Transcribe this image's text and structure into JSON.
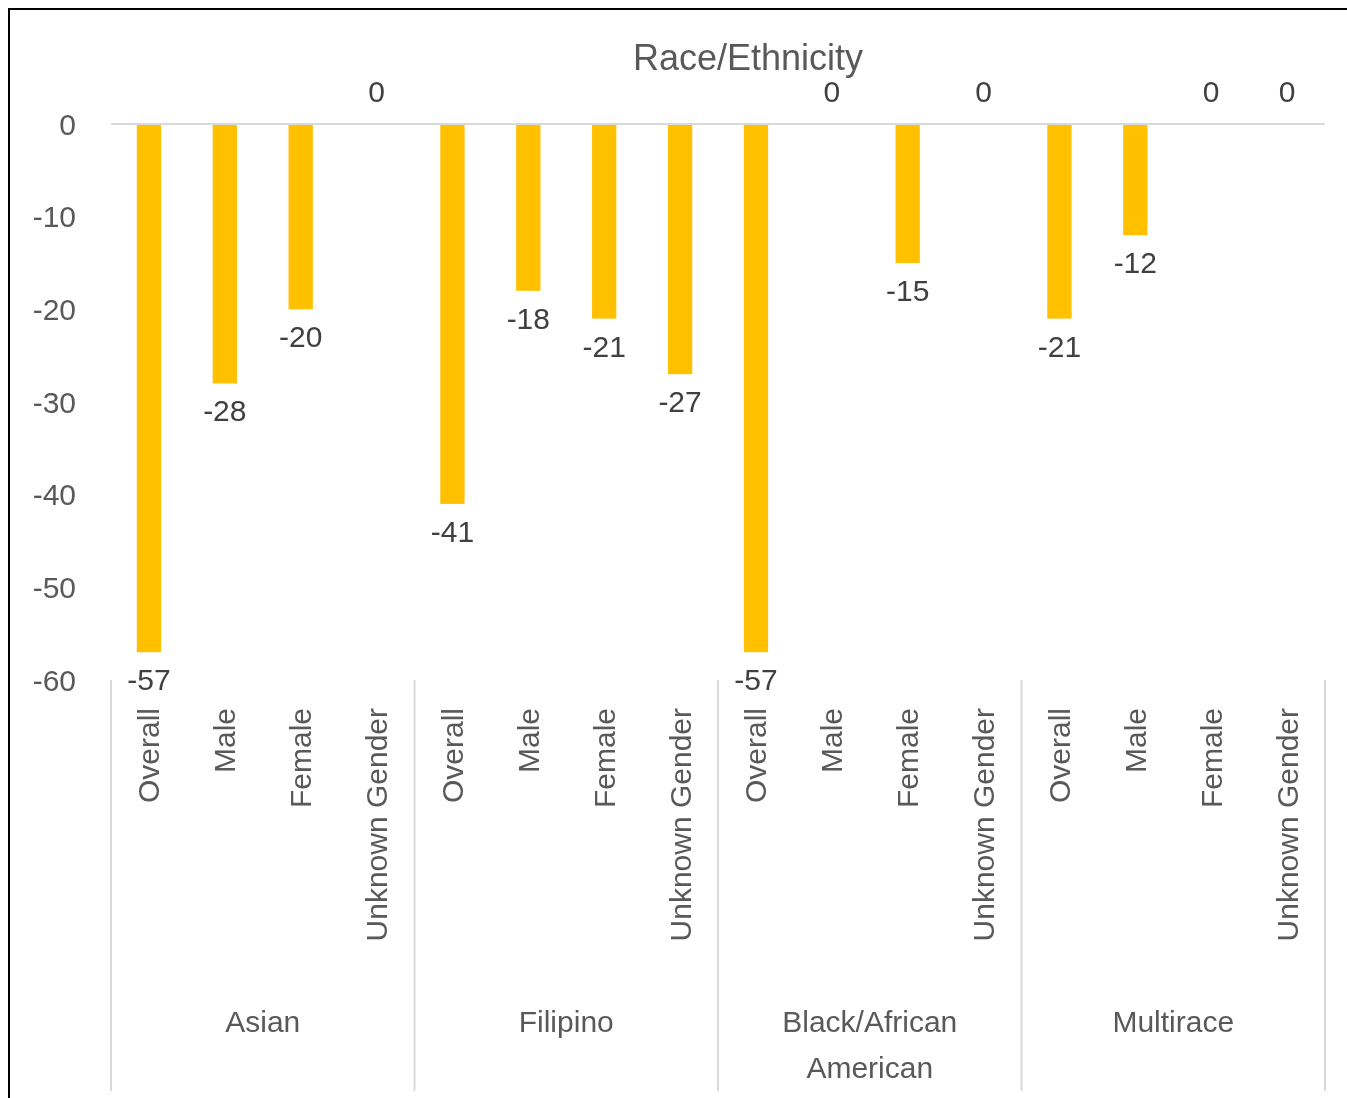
{
  "chart_data": {
    "type": "bar",
    "title": "Race/Ethnicity",
    "categories": [
      "Overall",
      "Male",
      "Female",
      "Unknown Gender",
      "Overall",
      "Male",
      "Female",
      "Unknown Gender",
      "Overall",
      "Male",
      "Female",
      "Unknown Gender",
      "Overall",
      "Male",
      "Female",
      "Unknown Gender"
    ],
    "values": [
      -57,
      -28,
      -20,
      0,
      -41,
      -18,
      -21,
      -27,
      -57,
      0,
      -15,
      0,
      -21,
      -12,
      0,
      0
    ],
    "color": "#ffc000",
    "ylim": [
      -60,
      0
    ],
    "yticks": [
      -60,
      -50,
      -40,
      -30,
      -20,
      -10,
      0
    ],
    "data_labels": true,
    "grid": false,
    "annotations": [
      "Asian",
      "Filipino",
      "Black/African American",
      "Multirace"
    ]
  }
}
